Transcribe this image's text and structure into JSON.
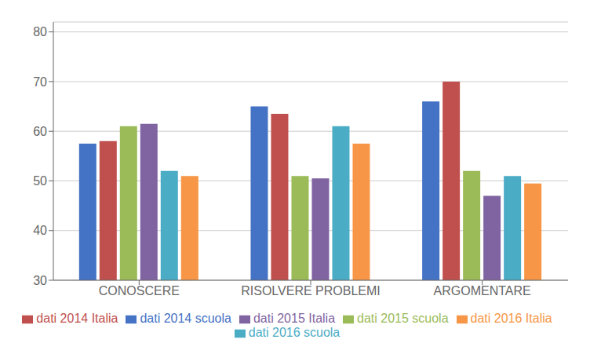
{
  "chart_data": {
    "type": "bar",
    "categories": [
      "CONOSCERE",
      "RISOLVERE PROBLEMI",
      "ARGOMENTARE"
    ],
    "series": [
      {
        "name": "dati 2014 scuola",
        "color": "#4472C4",
        "values": [
          57.5,
          65.0,
          66.0
        ]
      },
      {
        "name": "dati 2014 Italia",
        "color": "#C0504D",
        "values": [
          58.0,
          63.5,
          70.0
        ]
      },
      {
        "name": "dati 2015 scuola",
        "color": "#9BBB59",
        "values": [
          61.0,
          51.0,
          52.0
        ]
      },
      {
        "name": "dati 2015 Italia",
        "color": "#8064A2",
        "values": [
          61.5,
          50.5,
          47.0
        ]
      },
      {
        "name": "dati 2016 scuola",
        "color": "#4BACC6",
        "values": [
          52.0,
          61.0,
          51.0
        ]
      },
      {
        "name": "dati 2016 Italia",
        "color": "#F79646",
        "values": [
          51.0,
          57.5,
          49.5
        ]
      }
    ],
    "ylim": [
      30,
      82
    ],
    "yticks": [
      30,
      40,
      50,
      60,
      70,
      80
    ],
    "grid": true,
    "legend": "bottom"
  }
}
